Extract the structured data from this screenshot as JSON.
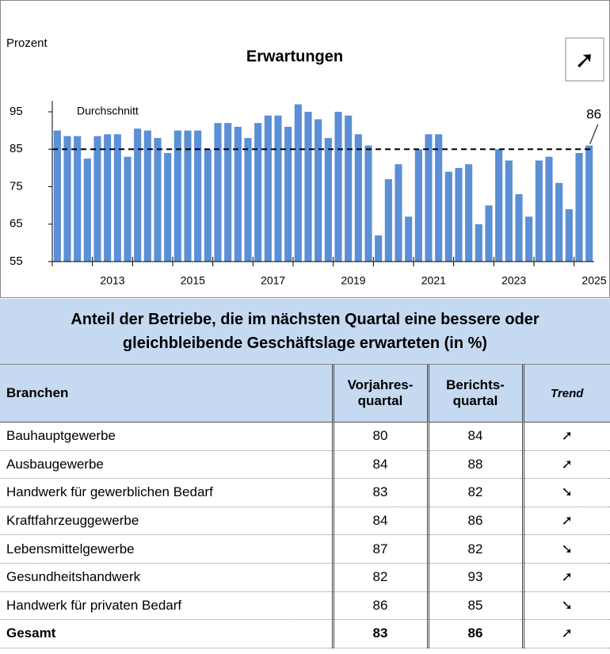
{
  "chart_data": {
    "type": "bar",
    "title": "Erwartungen",
    "y_axis_label": "Prozent",
    "trend_icon": "➚",
    "values": [
      90,
      88.5,
      88.5,
      82.5,
      88.5,
      89,
      89,
      83,
      90.5,
      90,
      88,
      84,
      90,
      90,
      90,
      85,
      92,
      92,
      91,
      88,
      92,
      94,
      94,
      91,
      97,
      95,
      93,
      88,
      95,
      94,
      89,
      86,
      62,
      77,
      81,
      67,
      85,
      89,
      89,
      79,
      80,
      81,
      65,
      70,
      85,
      82,
      73,
      67,
      82,
      83,
      76,
      69,
      84,
      86
    ],
    "color": "#5b8fd6",
    "x_labels": [
      "2013",
      "2015",
      "2017",
      "2019",
      "2021",
      "2023",
      "2025"
    ],
    "ylim": [
      55,
      100
    ],
    "yticks": [
      55,
      65,
      75,
      85,
      95
    ],
    "average": {
      "label": "Durchschnitt",
      "value": 85
    },
    "last_value_label": "86"
  },
  "table": {
    "title": [
      "Anteil der Betriebe, die im nächsten Quartal eine bessere oder",
      "gleichbleibende Geschäftslage erwarteten (in %)"
    ],
    "header": [
      [
        "Branchen"
      ],
      [
        "Vorjahres-",
        "quartal"
      ],
      [
        "Berichts-",
        "quartal"
      ],
      [
        "Trend"
      ]
    ],
    "rows": [
      [
        "Bauhauptgewerbe",
        "80",
        "84",
        "➚"
      ],
      [
        "Ausbaugewerbe",
        "84",
        "88",
        "➚"
      ],
      [
        "Handwerk für gewerblichen Bedarf",
        "83",
        "82",
        "➘"
      ],
      [
        "Kraftfahrzeuggewerbe",
        "84",
        "86",
        "➚"
      ],
      [
        "Lebensmittelgewerbe",
        "87",
        "82",
        "➘"
      ],
      [
        "Gesundheitshandwerk",
        "82",
        "93",
        "➚"
      ],
      [
        "Handwerk für privaten Bedarf",
        "86",
        "85",
        "➘"
      ],
      [
        "Gesamt",
        "83",
        "86",
        "➚"
      ]
    ]
  }
}
